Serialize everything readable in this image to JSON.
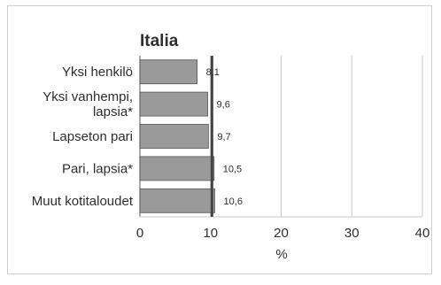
{
  "chart_data": {
    "type": "bar",
    "orientation": "horizontal",
    "title": "Italia",
    "categories": [
      "Yksi henkilö",
      "Yksi vanhempi, lapsia*",
      "Lapseton pari",
      "Pari, lapsia*",
      "Muut kotitaloudet"
    ],
    "category_lines": [
      [
        "Yksi henkilö"
      ],
      [
        "Yksi vanhempi,",
        "lapsia*"
      ],
      [
        "Lapseton pari"
      ],
      [
        "Pari, lapsia*"
      ],
      [
        "Muut kotitaloudet"
      ]
    ],
    "values": [
      8.1,
      9.6,
      9.7,
      10.5,
      10.6
    ],
    "value_labels": [
      "8,1",
      "9,6",
      "9,7",
      "10,5",
      "10,6"
    ],
    "reference_line": 10.2,
    "xlim": [
      0,
      40
    ],
    "xticks": [
      0,
      10,
      20,
      30,
      40
    ],
    "xlabel": "%",
    "grid": true,
    "colors": {
      "bar": "#9a9a9a",
      "bar_edge": "#555555",
      "reference": "#444444",
      "grid": "#c8c8c8",
      "text": "#2e2e2e"
    }
  }
}
